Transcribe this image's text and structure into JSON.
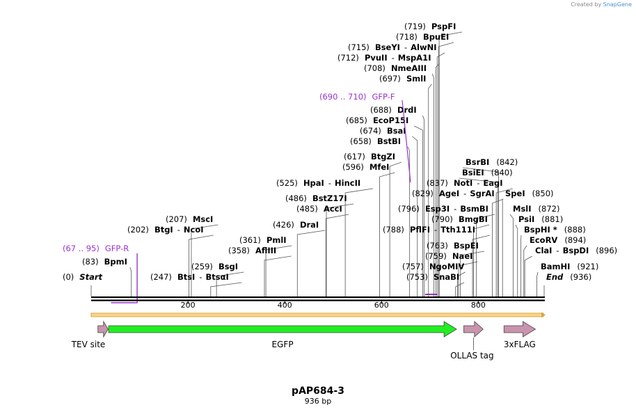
{
  "watermark": {
    "prefix": "Created by",
    "brand": "SnapGene"
  },
  "map": {
    "name": "pAP684-3",
    "length_label": "936 bp",
    "length_bp": 936
  },
  "colors": {
    "cut_line": "#555555",
    "primer": "#9933cc",
    "ruler": "#000000",
    "feature_pink": "#c994ad",
    "egfp": "#22ee22",
    "orf_line": "#f0c060"
  },
  "ruler": {
    "ticks": [
      {
        "bp": 200,
        "label": "200"
      },
      {
        "bp": 400,
        "label": "400"
      },
      {
        "bp": 600,
        "label": "600"
      },
      {
        "bp": 800,
        "label": "800"
      }
    ]
  },
  "sites": [
    {
      "pos": "(0)",
      "name": "Start",
      "bp": 0,
      "italic": true
    },
    {
      "pos": "(83)",
      "name": "BpmI",
      "bp": 83
    },
    {
      "pos": "(202)",
      "name": "BtgI",
      "sep": "-",
      "name2": "NcoI",
      "bp": 202
    },
    {
      "pos": "(207)",
      "name": "MscI",
      "bp": 207
    },
    {
      "pos": "(247)",
      "name": "BtsI",
      "sep": "-",
      "name2": "BtsαI",
      "bp": 247
    },
    {
      "pos": "(259)",
      "name": "BsgI",
      "bp": 259
    },
    {
      "pos": "(358)",
      "name": "AflIII",
      "bp": 358
    },
    {
      "pos": "(361)",
      "name": "PmlI",
      "bp": 361
    },
    {
      "pos": "(426)",
      "name": "DraI",
      "bp": 426
    },
    {
      "pos": "(485)",
      "name": "AccI",
      "bp": 485
    },
    {
      "pos": "(486)",
      "name": "BstZ17I",
      "bp": 486
    },
    {
      "pos": "(525)",
      "name": "HpaI",
      "sep": "-",
      "name2": "HincII",
      "bp": 525
    },
    {
      "pos": "(596)",
      "name": "MfeI",
      "bp": 596
    },
    {
      "pos": "(617)",
      "name": "BtgZI",
      "bp": 617
    },
    {
      "pos": "(658)",
      "name": "BstBI",
      "bp": 658
    },
    {
      "pos": "(674)",
      "name": "BsaI",
      "bp": 674
    },
    {
      "pos": "(685)",
      "name": "EcoP15I",
      "bp": 685
    },
    {
      "pos": "(688)",
      "name": "DrdI",
      "bp": 688
    },
    {
      "pos": "(697)",
      "name": "SmlI",
      "bp": 697
    },
    {
      "pos": "(708)",
      "name": "NmeAIII",
      "bp": 708
    },
    {
      "pos": "(712)",
      "name": "PvuII",
      "sep": "-",
      "name2": "MspA1I",
      "bp": 712
    },
    {
      "pos": "(715)",
      "name": "BseYI",
      "sep": "-",
      "name2": "AlwNI",
      "bp": 715
    },
    {
      "pos": "(718)",
      "name": "BpuEI",
      "bp": 718
    },
    {
      "pos": "(719)",
      "name": "PspFI",
      "bp": 719
    },
    {
      "pos": "(753)",
      "name": "SnaBI",
      "bp": 753
    },
    {
      "pos": "(757)",
      "name": "NgoMIV",
      "bp": 757
    },
    {
      "pos": "(759)",
      "name": "NaeI",
      "bp": 759
    },
    {
      "pos": "(763)",
      "name": "BspEI",
      "bp": 763
    },
    {
      "pos": "(788)",
      "name": "PflFI",
      "sep": "-",
      "name2": "Tth111I",
      "bp": 788
    },
    {
      "pos": "(790)",
      "name": "BmgBI",
      "bp": 790
    },
    {
      "pos": "(796)",
      "name": "Esp3I",
      "sep": "-",
      "name2": "BsmBI",
      "bp": 796
    },
    {
      "pos": "(829)",
      "name": "AgeI",
      "sep": "-",
      "name2": "SgrAI",
      "bp": 829
    },
    {
      "pos": "(837)",
      "name": "NotI",
      "sep": "-",
      "name2": "EagI",
      "bp": 837
    },
    {
      "pos": "(840)",
      "name": "BsiEI",
      "bp": 840
    },
    {
      "pos": "(842)",
      "name": "BsrBI",
      "bp": 842
    },
    {
      "pos": "(850)",
      "name": "SpeI",
      "bp": 850
    },
    {
      "pos": "(872)",
      "name": "MslI",
      "bp": 872
    },
    {
      "pos": "(881)",
      "name": "PsiI",
      "bp": 881
    },
    {
      "pos": "(888)",
      "name": "BspHI",
      "star": "*",
      "bp": 888
    },
    {
      "pos": "(894)",
      "name": "EcoRV",
      "bp": 894
    },
    {
      "pos": "(896)",
      "name": "ClaI",
      "sep": "-",
      "name2": "BspDI",
      "bp": 896
    },
    {
      "pos": "(921)",
      "name": "BamHI",
      "bp": 921
    },
    {
      "pos": "(936)",
      "name": "End",
      "bp": 936,
      "italic": true
    }
  ],
  "primers": [
    {
      "range": "(67 .. 95)",
      "name": "GFP-R",
      "start": 67,
      "end": 95,
      "strand": "reverse"
    },
    {
      "range": "(690 .. 710)",
      "name": "GFP-F",
      "start": 690,
      "end": 710,
      "strand": "forward"
    }
  ],
  "features": [
    {
      "name": "TEV site",
      "start": 14,
      "end": 35,
      "type": "small"
    },
    {
      "name": "EGFP",
      "start": 36,
      "end": 755,
      "type": "egfp"
    },
    {
      "name": "OLLAS tag",
      "start": 770,
      "end": 810,
      "type": "small"
    },
    {
      "name": "3xFLAG",
      "start": 853,
      "end": 918,
      "type": "small"
    }
  ]
}
